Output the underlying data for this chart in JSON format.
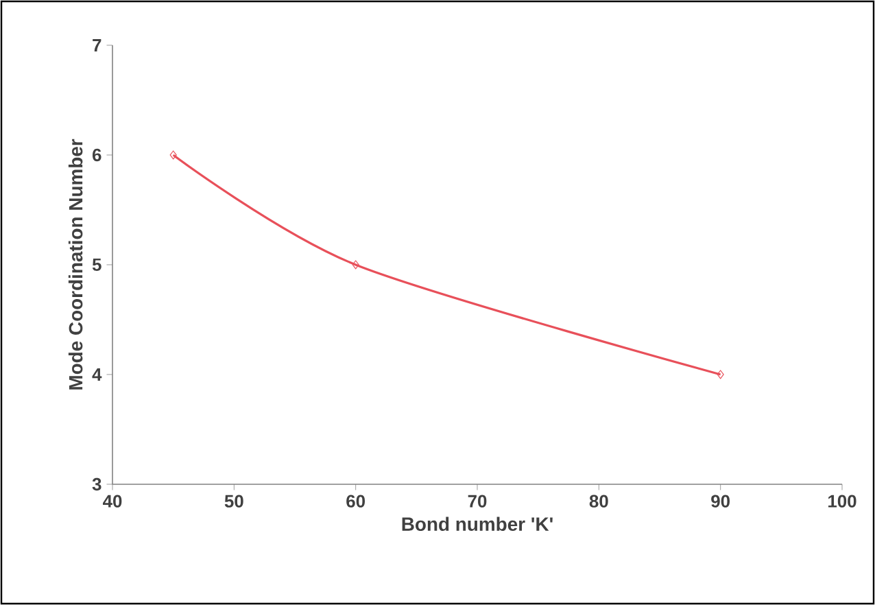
{
  "chart_data": {
    "type": "line",
    "xlabel": "Bond number 'K'",
    "ylabel": "Mode Coordination Number",
    "x": [
      45,
      60,
      90
    ],
    "series": [
      {
        "color": "#e8505a",
        "values": [
          6,
          5,
          4
        ]
      }
    ],
    "xlim": [
      40,
      100
    ],
    "xticks": [
      40,
      50,
      60,
      70,
      80,
      90,
      100
    ],
    "ylim": [
      3,
      7
    ],
    "yticks": [
      3,
      4,
      5,
      6,
      7
    ],
    "marker": "diamond",
    "line_style": "solid"
  }
}
